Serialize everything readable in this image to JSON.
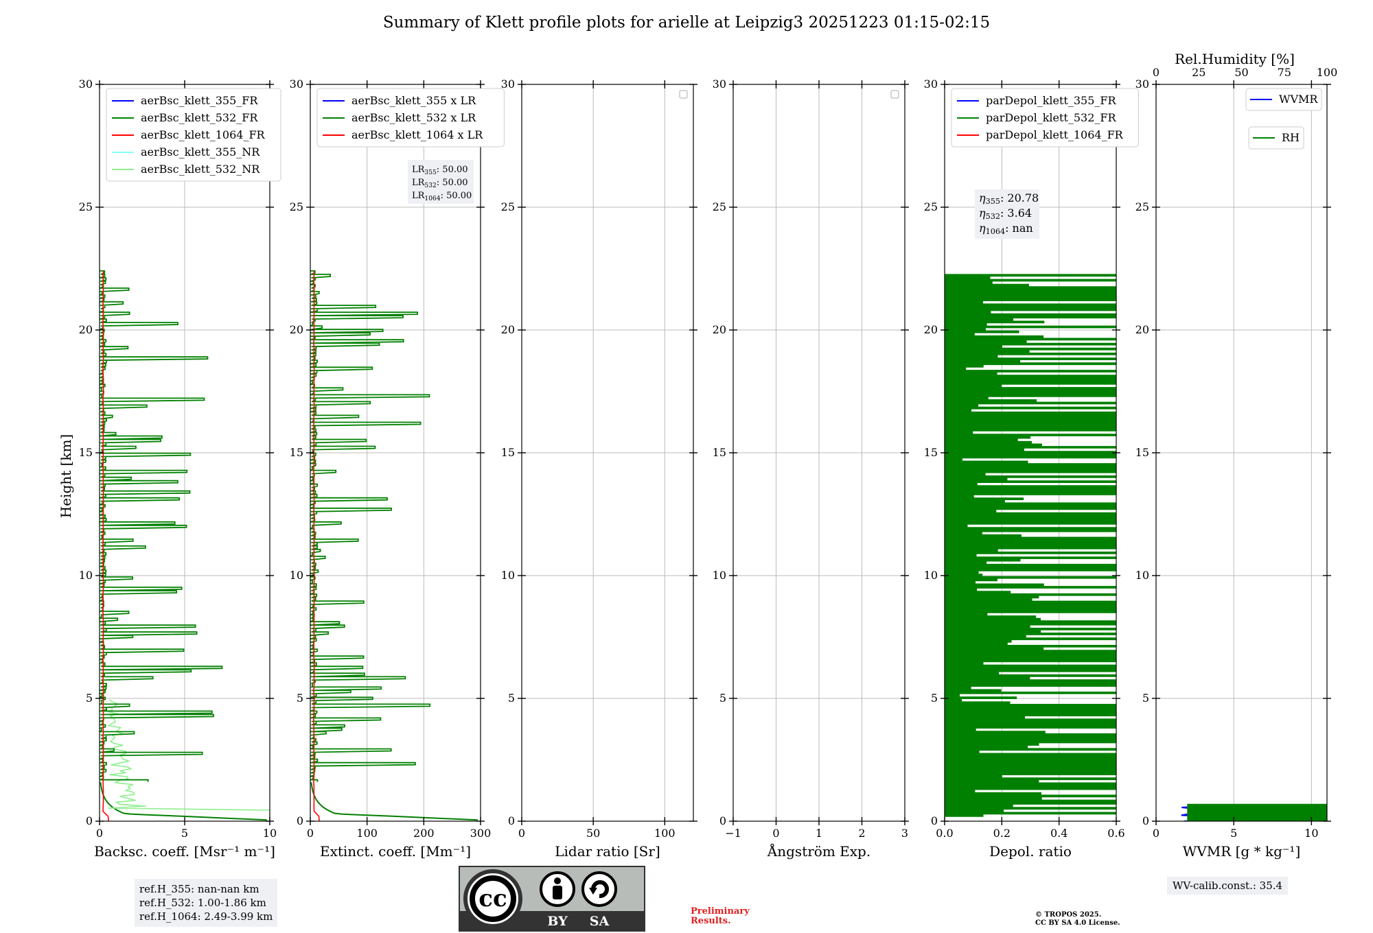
{
  "title": "Summary of Klett profile plots for arielle at Leipzig3 20251223 01:15-02:15",
  "colors": {
    "blue": "#0000ff",
    "green": "#008000",
    "red": "#ff0000",
    "cyan": "#80ffff",
    "lightgreen": "#90ee90",
    "grid": "#bbbbbb"
  },
  "chart_data": [
    {
      "id": "bsc",
      "type": "line",
      "xlabel": "Backsc. coeff. [Msr⁻¹ m⁻¹]",
      "ylabel": "Height [km]",
      "xlim": [
        0,
        10
      ],
      "ylim": [
        0,
        30
      ],
      "xticks": [
        0,
        5,
        10
      ],
      "yticks": [
        0,
        5,
        10,
        15,
        20,
        25,
        30
      ],
      "legend_position": "top-left",
      "series": [
        {
          "name": "aerBsc_klett_355_FR",
          "color": "blue"
        },
        {
          "name": "aerBsc_klett_532_FR",
          "color": "green"
        },
        {
          "name": "aerBsc_klett_1064_FR",
          "color": "red"
        },
        {
          "name": "aerBsc_klett_355_NR",
          "color": "cyan"
        },
        {
          "name": "aerBsc_klett_532_NR",
          "color": "lightgreen"
        }
      ]
    },
    {
      "id": "ext",
      "type": "line",
      "xlabel": "Extinct. coeff. [Mm⁻¹]",
      "xlim": [
        0,
        300
      ],
      "ylim": [
        0,
        30
      ],
      "xticks": [
        0,
        100,
        200,
        300
      ],
      "yticks": [
        0,
        5,
        10,
        15,
        20,
        25,
        30
      ],
      "legend_position": "top-left",
      "series": [
        {
          "name": "aerBsc_klett_355 x LR",
          "color": "blue"
        },
        {
          "name": "aerBsc_klett_532 x LR",
          "color": "green"
        },
        {
          "name": "aerBsc_klett_1064 x LR",
          "color": "red"
        }
      ],
      "annotation": [
        [
          "LR",
          "355",
          ": 50.00"
        ],
        [
          "LR",
          "532",
          ": 50.00"
        ],
        [
          "LR",
          "1064",
          ": 50.00"
        ]
      ]
    },
    {
      "id": "lr",
      "type": "line",
      "xlabel": "Lidar ratio [Sr]",
      "xlim": [
        0,
        120
      ],
      "ylim": [
        0,
        30
      ],
      "xticks": [
        0,
        50,
        100
      ],
      "yticks": [
        0,
        5,
        10,
        15,
        20,
        25,
        30
      ],
      "series": []
    },
    {
      "id": "ang",
      "type": "line",
      "xlabel": "Ångström Exp.",
      "xlim": [
        -1,
        3
      ],
      "ylim": [
        0,
        30
      ],
      "xticks": [
        -1,
        0,
        1,
        2,
        3
      ],
      "yticks": [
        0,
        5,
        10,
        15,
        20,
        25,
        30
      ],
      "series": []
    },
    {
      "id": "dep",
      "type": "line",
      "xlabel": "Depol. ratio",
      "xlim": [
        0,
        0.6
      ],
      "ylim": [
        0,
        30
      ],
      "xticks": [
        0.0,
        0.2,
        0.4,
        0.6
      ],
      "xtick_labels": [
        "0.0",
        "0.2",
        "0.4",
        "0.6"
      ],
      "yticks": [
        0,
        5,
        10,
        15,
        20,
        25,
        30
      ],
      "legend_position": "top-left",
      "series": [
        {
          "name": "parDepol_klett_355_FR",
          "color": "blue"
        },
        {
          "name": "parDepol_klett_532_FR",
          "color": "green"
        },
        {
          "name": "parDepol_klett_1064_FR",
          "color": "red"
        }
      ],
      "annotation": [
        [
          "η",
          "355",
          ": 20.78"
        ],
        [
          "η",
          "532",
          ": 3.64"
        ],
        [
          "η",
          "1064",
          ": nan"
        ]
      ]
    },
    {
      "id": "wv",
      "type": "line",
      "xlabel": "WVMR [g * kg⁻¹]",
      "xlim": [
        0,
        11
      ],
      "ylim": [
        0,
        30
      ],
      "xticks": [
        0,
        5,
        10
      ],
      "yticks": [
        0,
        5,
        10,
        15,
        20,
        25,
        30
      ],
      "top_xlabel": "Rel.Humidity [%]",
      "top_xlim": [
        0,
        100
      ],
      "top_xticks": [
        0,
        25,
        50,
        75,
        100
      ],
      "series": [
        {
          "name": "WVMR",
          "color": "blue"
        },
        {
          "name": "RH",
          "color": "green"
        }
      ]
    }
  ],
  "ref_heights": [
    "ref.H_355: nan-nan km",
    "ref.H_532: 1.00-1.86 km",
    "ref.H_1064: 2.49-3.99 km"
  ],
  "wv_calib": "WV-calib.const.: 35.4",
  "license_badge": {
    "cc": "cc",
    "by": "BY",
    "sa": "SA"
  },
  "preliminary": [
    "Preliminary",
    "Results."
  ],
  "copyright": [
    "© TROPOS 2025.",
    "CC BY SA 4.0 License."
  ]
}
